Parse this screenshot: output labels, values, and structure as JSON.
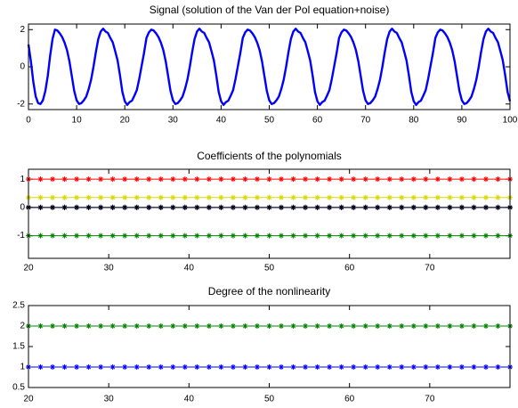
{
  "chart_data": [
    {
      "type": "line",
      "title": "Signal (solution of the Van der Pol equation+noise)",
      "x": [
        0,
        0.5,
        1,
        1.5,
        2,
        2.5,
        3,
        3.5,
        4,
        4.5,
        5,
        5.5,
        6,
        6.5,
        7,
        7.5,
        8,
        8.5,
        9,
        9.5,
        10,
        10.5,
        11,
        11.5,
        12,
        12.5,
        13,
        13.5,
        14,
        14.5,
        15,
        15.5,
        16,
        16.5,
        17,
        17.5,
        18,
        18.5,
        19,
        19.5,
        20,
        20.5,
        21,
        21.5,
        22,
        22.5,
        23,
        23.5,
        24,
        24.5,
        25,
        25.5,
        26,
        26.5,
        27,
        27.5,
        28,
        28.5,
        29,
        29.5,
        30,
        30.5,
        31,
        31.5,
        32,
        32.5,
        33,
        33.5,
        34,
        34.5,
        35,
        35.5,
        36,
        36.5,
        37,
        37.5,
        38,
        38.5,
        39,
        39.5,
        40,
        40.5,
        41,
        41.5,
        42,
        42.5,
        43,
        43.5,
        44,
        44.5,
        45,
        45.5,
        46,
        46.5,
        47,
        47.5,
        48,
        48.5,
        49,
        49.5,
        50,
        50.5,
        51,
        51.5,
        52,
        52.5,
        53,
        53.5,
        54,
        54.5,
        55,
        55.5,
        56,
        56.5,
        57,
        57.5,
        58,
        58.5,
        59,
        59.5,
        60,
        60.5,
        61,
        61.5,
        62,
        62.5,
        63,
        63.5,
        64,
        64.5,
        65,
        65.5,
        66,
        66.5,
        67,
        67.5,
        68,
        68.5,
        69,
        69.5,
        70,
        70.5,
        71,
        71.5,
        72,
        72.5,
        73,
        73.5,
        74,
        74.5,
        75,
        75.5,
        76,
        76.5,
        77,
        77.5,
        78,
        78.5,
        79,
        79.5,
        80,
        80.5,
        81,
        81.5,
        82,
        82.5,
        83,
        83.5,
        84,
        84.5,
        85,
        85.5,
        86,
        86.5,
        87,
        87.5,
        88,
        88.5,
        89,
        89.5,
        90,
        90.5,
        91,
        91.5,
        92,
        92.5,
        93,
        93.5,
        94,
        94.5,
        95,
        95.5,
        96,
        96.5,
        97,
        97.5,
        98,
        98.5,
        99,
        99.5,
        100
      ],
      "series": [
        {
          "color": "#0000ff",
          "values": [
            1.2,
            0.3,
            -0.8,
            -1.6,
            -1.95,
            -2.0,
            -1.8,
            -1.3,
            -0.5,
            0.6,
            1.5,
            2.0,
            1.95,
            1.8,
            1.6,
            1.3,
            0.9,
            0.3,
            -0.5,
            -1.3,
            -1.8,
            -2.0,
            -1.95,
            -1.8,
            -1.6,
            -1.2,
            -0.7,
            0.0,
            0.8,
            1.5,
            1.9,
            2.05,
            1.9,
            1.82,
            1.55,
            1.32,
            0.85,
            0.35,
            -0.45,
            -1.35,
            -1.85,
            -2.05,
            -1.9,
            -1.82,
            -1.55,
            -1.25,
            -0.65,
            0.05,
            0.75,
            1.55,
            1.85,
            2.0,
            1.95,
            1.8,
            1.6,
            1.3,
            0.9,
            0.3,
            -0.5,
            -1.3,
            -1.8,
            -2.0,
            -1.95,
            -1.8,
            -1.6,
            -1.2,
            -0.7,
            0.0,
            0.8,
            1.5,
            1.9,
            2.05,
            1.9,
            1.82,
            1.55,
            1.32,
            0.85,
            0.35,
            -0.45,
            -1.35,
            -1.85,
            -2.05,
            -1.9,
            -1.82,
            -1.55,
            -1.25,
            -0.65,
            0.05,
            0.75,
            1.55,
            1.85,
            2.0,
            1.95,
            1.8,
            1.6,
            1.3,
            0.9,
            0.3,
            -0.5,
            -1.3,
            -1.8,
            -2.0,
            -1.95,
            -1.8,
            -1.6,
            -1.2,
            -0.7,
            0.0,
            0.8,
            1.5,
            1.9,
            2.05,
            1.9,
            1.82,
            1.55,
            1.32,
            0.85,
            0.35,
            -0.45,
            -1.35,
            -1.85,
            -2.05,
            -1.9,
            -1.82,
            -1.55,
            -1.25,
            -0.65,
            0.05,
            0.75,
            1.55,
            1.85,
            2.0,
            1.95,
            1.8,
            1.6,
            1.3,
            0.9,
            0.3,
            -0.5,
            -1.3,
            -1.8,
            -2.0,
            -1.95,
            -1.8,
            -1.6,
            -1.2,
            -0.7,
            0.0,
            0.8,
            1.5,
            1.9,
            2.05,
            1.9,
            1.82,
            1.55,
            1.32,
            0.85,
            0.35,
            -0.45,
            -1.35,
            -1.85,
            -2.05,
            -1.9,
            -1.82,
            -1.55,
            -1.25,
            -0.65,
            0.05,
            0.75,
            1.55,
            1.85,
            2.0,
            1.95,
            1.8,
            1.6,
            1.3,
            0.9,
            0.3,
            -0.5,
            -1.3,
            -1.8,
            -2.0,
            -1.95,
            -1.8,
            -1.6,
            -1.2,
            -0.7,
            0.0,
            0.8,
            1.5,
            1.9,
            2.05,
            1.9,
            1.82,
            1.55,
            1.32,
            0.85,
            0.35,
            -0.45,
            -1.35,
            -1.85
          ]
        }
      ],
      "xlim": [
        0,
        100
      ],
      "xticks": [
        0,
        10,
        20,
        30,
        40,
        50,
        60,
        70,
        80,
        90,
        100
      ],
      "ylim": [
        -2.3,
        2.3
      ],
      "yticks": [
        -2,
        0,
        2
      ]
    },
    {
      "type": "line",
      "title": "Coefficients of the polynomials",
      "marker": "*",
      "x": [
        20,
        21.5,
        23,
        24.5,
        26,
        27.5,
        29,
        30.5,
        32,
        33.5,
        35,
        36.5,
        38,
        39.5,
        41,
        42.5,
        44,
        45.5,
        47,
        48.5,
        50,
        51.5,
        53,
        54.5,
        56,
        57.5,
        59,
        60.5,
        62,
        63.5,
        65,
        66.5,
        68,
        69.5,
        71,
        72.5,
        74,
        75.5,
        77,
        78.5,
        80
      ],
      "series": [
        {
          "color": "#ff0000",
          "values": [
            1,
            1,
            1,
            1,
            1,
            1,
            1,
            1,
            1,
            1,
            1,
            1,
            1,
            1,
            1,
            1,
            1,
            1,
            1,
            1,
            1,
            1,
            1,
            1,
            1,
            1,
            1,
            1,
            1,
            1,
            1,
            1,
            1,
            1,
            1,
            1,
            1,
            1,
            1,
            1,
            1
          ]
        },
        {
          "color": "#d8d800",
          "values": [
            0.35,
            0.35,
            0.35,
            0.35,
            0.35,
            0.35,
            0.35,
            0.35,
            0.35,
            0.35,
            0.35,
            0.35,
            0.35,
            0.35,
            0.35,
            0.35,
            0.35,
            0.35,
            0.35,
            0.35,
            0.35,
            0.35,
            0.35,
            0.35,
            0.35,
            0.35,
            0.35,
            0.35,
            0.35,
            0.35,
            0.35,
            0.35,
            0.35,
            0.35,
            0.35,
            0.35,
            0.35,
            0.35,
            0.35,
            0.35,
            0.35
          ]
        },
        {
          "color": "#0000ff",
          "values": [
            0,
            0,
            0,
            0,
            0,
            0,
            0,
            0,
            0,
            0,
            0,
            0,
            0,
            0,
            0,
            0,
            0,
            0,
            0,
            0,
            0,
            0,
            0,
            0,
            0,
            0,
            0,
            0,
            0,
            0,
            0,
            0,
            0,
            0,
            0,
            0,
            0,
            0,
            0,
            0,
            0
          ]
        },
        {
          "color": "#000000",
          "values": [
            0,
            0,
            0,
            0,
            0,
            0,
            0,
            0,
            0,
            0,
            0,
            0,
            0,
            0,
            0,
            0,
            0,
            0,
            0,
            0,
            0,
            0,
            0,
            0,
            0,
            0,
            0,
            0,
            0,
            0,
            0,
            0,
            0,
            0,
            0,
            0,
            0,
            0,
            0,
            0,
            0
          ]
        },
        {
          "color": "#008000",
          "values": [
            -1,
            -1,
            -1,
            -1,
            -1,
            -1,
            -1,
            -1,
            -1,
            -1,
            -1,
            -1,
            -1,
            -1,
            -1,
            -1,
            -1,
            -1,
            -1,
            -1,
            -1,
            -1,
            -1,
            -1,
            -1,
            -1,
            -1,
            -1,
            -1,
            -1,
            -1,
            -1,
            -1,
            -1,
            -1,
            -1,
            -1,
            -1,
            -1,
            -1,
            -1
          ]
        }
      ],
      "xlim": [
        20,
        80
      ],
      "xticks": [
        20,
        30,
        40,
        50,
        60,
        70
      ],
      "ylim": [
        -1.8,
        1.35
      ],
      "yticks": [
        -1,
        0,
        1
      ]
    },
    {
      "type": "line",
      "title": "Degree of the nonlinearity",
      "marker": "*",
      "x": [
        20,
        21.5,
        23,
        24.5,
        26,
        27.5,
        29,
        30.5,
        32,
        33.5,
        35,
        36.5,
        38,
        39.5,
        41,
        42.5,
        44,
        45.5,
        47,
        48.5,
        50,
        51.5,
        53,
        54.5,
        56,
        57.5,
        59,
        60.5,
        62,
        63.5,
        65,
        66.5,
        68,
        69.5,
        71,
        72.5,
        74,
        75.5,
        77,
        78.5,
        80
      ],
      "series": [
        {
          "color": "#0000ff",
          "values": [
            1,
            1,
            1,
            1,
            1,
            1,
            1,
            1,
            1,
            1,
            1,
            1,
            1,
            1,
            1,
            1,
            1,
            1,
            1,
            1,
            1,
            1,
            1,
            1,
            1,
            1,
            1,
            1,
            1,
            1,
            1,
            1,
            1,
            1,
            1,
            1,
            1,
            1,
            1,
            1,
            1
          ]
        },
        {
          "color": "#008000",
          "values": [
            2,
            2,
            2,
            2,
            2,
            2,
            2,
            2,
            2,
            2,
            2,
            2,
            2,
            2,
            2,
            2,
            2,
            2,
            2,
            2,
            2,
            2,
            2,
            2,
            2,
            2,
            2,
            2,
            2,
            2,
            2,
            2,
            2,
            2,
            2,
            2,
            2,
            2,
            2,
            2,
            2
          ]
        }
      ],
      "xlim": [
        20,
        80
      ],
      "xticks": [
        20,
        30,
        40,
        50,
        60,
        70
      ],
      "ylim": [
        0.5,
        2.5
      ],
      "yticks": [
        0.5,
        1,
        1.5,
        2,
        2.5
      ]
    }
  ]
}
